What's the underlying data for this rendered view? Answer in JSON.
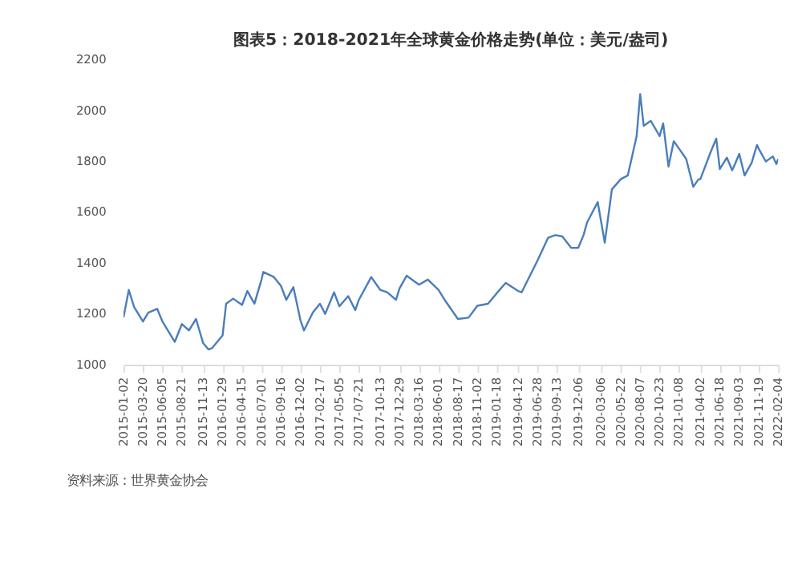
{
  "chart_data": {
    "type": "line",
    "title": "图表5：2018-2021年全球黄金价格走势(单位：美元/盎司)",
    "x": [
      "2015-01-02",
      "2015-01-23",
      "2015-02-13",
      "2015-03-20",
      "2015-04-10",
      "2015-05-15",
      "2015-06-05",
      "2015-07-24",
      "2015-08-21",
      "2015-09-18",
      "2015-10-16",
      "2015-11-13",
      "2015-12-04",
      "2015-12-18",
      "2016-01-29",
      "2016-02-12",
      "2016-03-11",
      "2016-04-15",
      "2016-05-06",
      "2016-06-03",
      "2016-07-01",
      "2016-07-08",
      "2016-08-19",
      "2016-09-16",
      "2016-10-07",
      "2016-11-04",
      "2016-12-02",
      "2016-12-16",
      "2017-01-20",
      "2017-02-17",
      "2017-03-10",
      "2017-04-14",
      "2017-05-05",
      "2017-06-09",
      "2017-07-07",
      "2017-07-21",
      "2017-09-08",
      "2017-10-13",
      "2017-11-10",
      "2017-12-15",
      "2017-12-29",
      "2018-01-26",
      "2018-03-16",
      "2018-04-20",
      "2018-06-01",
      "2018-06-29",
      "2018-08-17",
      "2018-09-28",
      "2018-11-02",
      "2018-12-14",
      "2019-01-18",
      "2019-02-22",
      "2019-04-12",
      "2019-04-26",
      "2019-06-28",
      "2019-08-09",
      "2019-09-06",
      "2019-10-04",
      "2019-11-08",
      "2019-12-06",
      "2019-12-27",
      "2020-01-10",
      "2020-02-21",
      "2020-03-20",
      "2020-04-17",
      "2020-05-22",
      "2020-06-19",
      "2020-07-24",
      "2020-08-07",
      "2020-08-21",
      "2020-09-18",
      "2020-10-23",
      "2020-11-06",
      "2020-11-27",
      "2020-12-18",
      "2021-01-08",
      "2021-02-05",
      "2021-03-05",
      "2021-03-26",
      "2021-04-02",
      "2021-05-14",
      "2021-06-04",
      "2021-06-18",
      "2021-07-16",
      "2021-08-06",
      "2021-08-13",
      "2021-09-03",
      "2021-09-24",
      "2021-10-22",
      "2021-11-12",
      "2021-11-19",
      "2021-12-17",
      "2022-01-14",
      "2022-01-28",
      "2022-02-04"
    ],
    "values": [
      1186,
      1294,
      1227,
      1170,
      1205,
      1220,
      1170,
      1090,
      1160,
      1135,
      1180,
      1085,
      1060,
      1065,
      1115,
      1240,
      1260,
      1235,
      1290,
      1240,
      1335,
      1365,
      1345,
      1310,
      1255,
      1305,
      1175,
      1135,
      1205,
      1240,
      1200,
      1285,
      1230,
      1270,
      1215,
      1255,
      1345,
      1295,
      1285,
      1255,
      1300,
      1350,
      1315,
      1335,
      1295,
      1250,
      1180,
      1185,
      1232,
      1240,
      1282,
      1322,
      1290,
      1285,
      1410,
      1500,
      1510,
      1505,
      1460,
      1460,
      1510,
      1560,
      1640,
      1480,
      1690,
      1730,
      1745,
      1900,
      2065,
      1940,
      1960,
      1900,
      1950,
      1780,
      1880,
      1850,
      1810,
      1700,
      1730,
      1730,
      1840,
      1890,
      1770,
      1815,
      1765,
      1780,
      1830,
      1745,
      1795,
      1865,
      1850,
      1800,
      1820,
      1790,
      1810
    ],
    "color": "#4a7ebb",
    "xlim": [
      "2015-01-02",
      "2022-02-04"
    ],
    "xticks": [
      "2015-01-02",
      "2015-03-20",
      "2015-06-05",
      "2015-08-21",
      "2015-11-13",
      "2016-01-29",
      "2016-04-15",
      "2016-07-01",
      "2016-09-16",
      "2016-12-02",
      "2017-02-17",
      "2017-05-05",
      "2017-07-21",
      "2017-10-13",
      "2017-12-29",
      "2018-03-16",
      "2018-06-01",
      "2018-08-17",
      "2018-11-02",
      "2019-01-18",
      "2019-04-12",
      "2019-06-28",
      "2019-09-13",
      "2019-12-06",
      "2020-03-06",
      "2020-05-22",
      "2020-08-07",
      "2020-10-23",
      "2021-01-08",
      "2021-04-02",
      "2021-06-18",
      "2021-09-03",
      "2021-11-19",
      "2022-02-04"
    ],
    "ylim": [
      1000,
      2200
    ],
    "yticks": [
      1000,
      1200,
      1400,
      1600,
      1800,
      2000,
      2200
    ],
    "grid": false,
    "marker": "none",
    "line_style": "solid",
    "annotations": [
      "资料来源：世界黄金协会"
    ]
  }
}
